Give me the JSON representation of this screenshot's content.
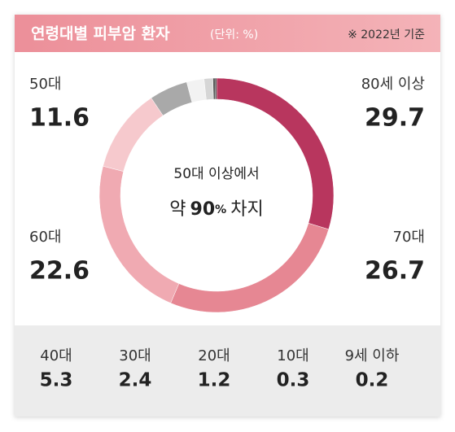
{
  "chart_data": {
    "type": "donut",
    "title": "연령대별 피부암 환자",
    "subtitle": "(단위: %)",
    "note": "※ 2022년 기준",
    "center_text": "50대 이상에서",
    "center_prefix": "약",
    "center_value": "90",
    "center_unit": "%",
    "center_suffix": "차지",
    "categories": [
      "80세 이상",
      "70대",
      "60대",
      "50대",
      "40대",
      "30대",
      "20대",
      "10대",
      "9세 이하"
    ],
    "values": [
      29.7,
      26.7,
      22.6,
      11.6,
      5.3,
      2.4,
      1.2,
      0.3,
      0.2
    ],
    "colors": [
      "#b8365e",
      "#e68793",
      "#f0aab2",
      "#f6c9cd",
      "#a9a9a9",
      "#f2f2f2",
      "#d6d6d6",
      "#5a5a5a",
      "#222222"
    ]
  }
}
